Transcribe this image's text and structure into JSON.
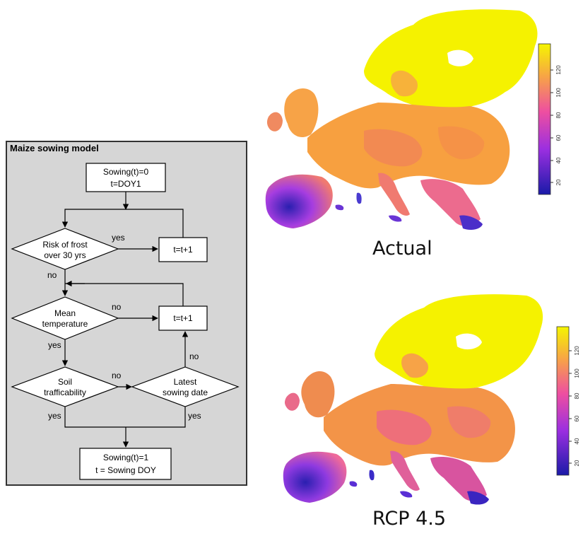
{
  "flowchart": {
    "title": "Maize sowing model",
    "start_line1": "Sowing(t)=0",
    "start_line2": "t=DOY1",
    "frost_line1": "Risk of frost",
    "frost_line2": "over 30 yrs",
    "increment1": "t=t+1",
    "mean_line1": "Mean",
    "mean_line2": "temperature",
    "increment2": "t=t+1",
    "soil_line1": "Soil",
    "soil_line2": "trafficability",
    "latest_line1": "Latest",
    "latest_line2": "sowing date",
    "end_line1": "Sowing(t)=1",
    "end_line2": "t = Sowing DOY",
    "yes": "yes",
    "no": "no"
  },
  "maps": [
    {
      "caption": "Actual",
      "legend_ticks": [
        "20",
        "40",
        "60",
        "80",
        "100",
        "120"
      ]
    },
    {
      "caption": "RCP  4.5",
      "legend_ticks": [
        "20",
        "40",
        "60",
        "80",
        "100",
        "120"
      ]
    }
  ],
  "colors": {
    "low": "#1a1aa8",
    "mid_low": "#9b2fe0",
    "mid": "#ee4fa0",
    "mid_high": "#f7a347",
    "high": "#f5f500"
  }
}
